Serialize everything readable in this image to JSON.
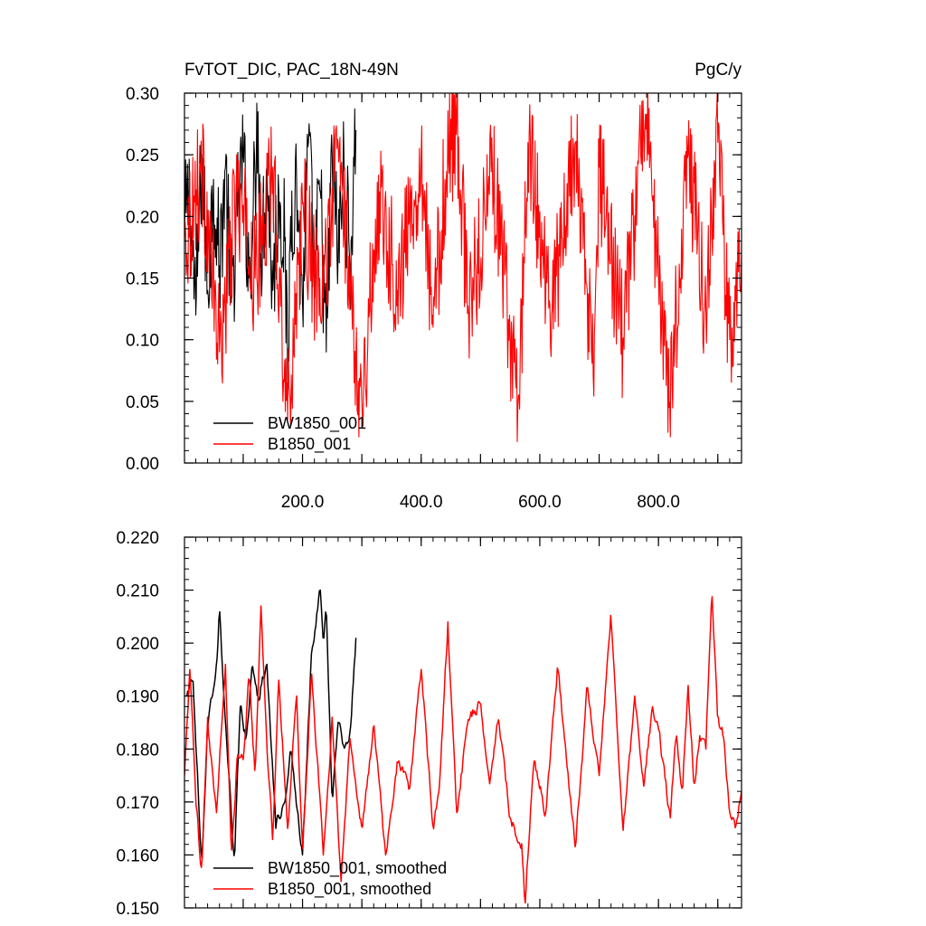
{
  "chart_data": [
    {
      "type": "line",
      "title_left": "FvTOT_DIC, PAC_18N-49N",
      "title_right": "PgC/y",
      "xlim": [
        1,
        940
      ],
      "ylim": [
        0.0,
        0.3
      ],
      "x_ticks": [
        200,
        400,
        600,
        800
      ],
      "x_tick_labels": [
        "200.0",
        "400.0",
        "600.0",
        "800.0"
      ],
      "y_ticks": [
        0.0,
        0.05,
        0.1,
        0.15,
        0.2,
        0.25,
        0.3
      ],
      "y_tick_labels": [
        "0.00",
        "0.05",
        "0.10",
        "0.15",
        "0.20",
        "0.25",
        "0.30"
      ],
      "grid": false,
      "legend_position": "bottom-left",
      "series": [
        {
          "name": "BW1850_001",
          "color": "#000000",
          "x": [
            1,
            10,
            20,
            30,
            40,
            50,
            60,
            70,
            80,
            90,
            100,
            110,
            120,
            125,
            130,
            140,
            150,
            160,
            170,
            175,
            180,
            190,
            200,
            210,
            220,
            230,
            240,
            250,
            260,
            270,
            280,
            290
          ],
          "values": [
            0.19,
            0.22,
            0.12,
            0.25,
            0.14,
            0.23,
            0.16,
            0.24,
            0.13,
            0.2,
            0.25,
            0.15,
            0.23,
            0.285,
            0.17,
            0.24,
            0.14,
            0.22,
            0.18,
            0.06,
            0.2,
            0.23,
            0.13,
            0.26,
            0.15,
            0.22,
            0.09,
            0.25,
            0.17,
            0.24,
            0.16,
            0.27
          ]
        },
        {
          "name": "B1850_001",
          "color": "#ff0000",
          "x": [
            1,
            30,
            60,
            90,
            120,
            150,
            175,
            200,
            230,
            260,
            290,
            300,
            330,
            360,
            400,
            420,
            440,
            460,
            480,
            520,
            550,
            565,
            580,
            620,
            660,
            690,
            700,
            740,
            770,
            780,
            800,
            818,
            850,
            880,
            900,
            920,
            940
          ],
          "values": [
            0.18,
            0.24,
            0.09,
            0.22,
            0.15,
            0.24,
            0.035,
            0.21,
            0.12,
            0.26,
            0.09,
            0.05,
            0.22,
            0.14,
            0.25,
            0.11,
            0.23,
            0.28,
            0.12,
            0.24,
            0.1,
            0.055,
            0.26,
            0.12,
            0.26,
            0.07,
            0.24,
            0.1,
            0.25,
            0.283,
            0.15,
            0.045,
            0.25,
            0.12,
            0.26,
            0.1,
            0.17
          ]
        }
      ]
    },
    {
      "type": "line",
      "xlim": [
        1,
        940
      ],
      "ylim": [
        0.15,
        0.22
      ],
      "y_ticks": [
        0.15,
        0.16,
        0.17,
        0.18,
        0.19,
        0.2,
        0.21,
        0.22
      ],
      "y_tick_labels": [
        "0.150",
        "0.160",
        "0.170",
        "0.180",
        "0.190",
        "0.200",
        "0.210",
        "0.220"
      ],
      "grid": false,
      "legend_position": "bottom-left",
      "series": [
        {
          "name": "BW1850_001, smoothed",
          "color": "#000000",
          "x": [
            5,
            15,
            25,
            30,
            40,
            55,
            60,
            70,
            85,
            95,
            105,
            115,
            125,
            140,
            155,
            170,
            180,
            200,
            215,
            230,
            235,
            240,
            245,
            250,
            260,
            270,
            280,
            290
          ],
          "values": [
            0.19,
            0.194,
            0.17,
            0.158,
            0.185,
            0.196,
            0.207,
            0.185,
            0.159,
            0.188,
            0.182,
            0.196,
            0.19,
            0.196,
            0.165,
            0.17,
            0.18,
            0.16,
            0.198,
            0.21,
            0.2,
            0.207,
            0.188,
            0.17,
            0.185,
            0.18,
            0.183,
            0.201
          ]
        },
        {
          "name": "B1850_001, smoothed",
          "color": "#ff0000",
          "x": [
            1,
            10,
            20,
            30,
            40,
            55,
            70,
            80,
            90,
            100,
            110,
            120,
            130,
            140,
            150,
            160,
            175,
            190,
            200,
            215,
            235,
            250,
            265,
            280,
            300,
            320,
            340,
            360,
            380,
            400,
            420,
            430,
            445,
            460,
            480,
            500,
            515,
            530,
            550,
            570,
            575,
            590,
            610,
            630,
            650,
            660,
            680,
            700,
            720,
            740,
            760,
            775,
            790,
            800,
            820,
            830,
            840,
            850,
            860,
            870,
            880,
            890,
            900,
            910,
            920,
            930,
            940
          ],
          "values": [
            0.175,
            0.195,
            0.17,
            0.157,
            0.186,
            0.168,
            0.196,
            0.16,
            0.179,
            0.178,
            0.194,
            0.175,
            0.207,
            0.18,
            0.162,
            0.193,
            0.165,
            0.19,
            0.16,
            0.195,
            0.16,
            0.186,
            0.155,
            0.182,
            0.165,
            0.185,
            0.16,
            0.178,
            0.172,
            0.195,
            0.165,
            0.172,
            0.204,
            0.168,
            0.186,
            0.189,
            0.173,
            0.186,
            0.167,
            0.162,
            0.15,
            0.178,
            0.168,
            0.196,
            0.172,
            0.161,
            0.192,
            0.175,
            0.206,
            0.164,
            0.19,
            0.173,
            0.188,
            0.184,
            0.167,
            0.183,
            0.172,
            0.192,
            0.173,
            0.183,
            0.18,
            0.21,
            0.185,
            0.182,
            0.168,
            0.165,
            0.172
          ]
        }
      ]
    }
  ]
}
